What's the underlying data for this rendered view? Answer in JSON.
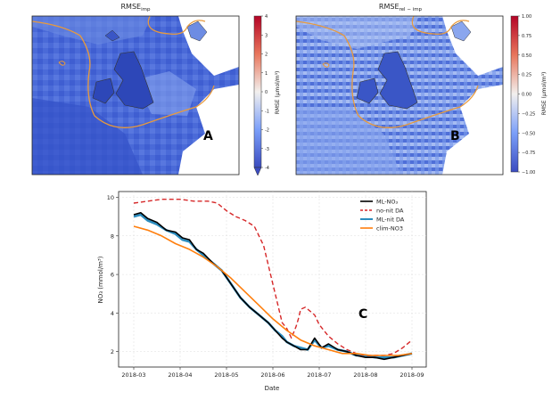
{
  "panels": {
    "map_a": {
      "title_base": "RMSE",
      "title_sub": "imp",
      "colorbar_label": "RMSE (μmol/m³)",
      "colorbar_ticks": [
        "4",
        "3",
        "2",
        "1",
        "0",
        "-1",
        "-2",
        "-3",
        "-4"
      ],
      "panel_label": "A",
      "colors": {
        "low": "#3b4cc0",
        "mid": "#f0f0f0",
        "high": "#b40426"
      }
    },
    "map_b": {
      "title_base": "RMSE",
      "title_sub": "rel − imp",
      "colorbar_label": "RMSE (μmol/m³)",
      "colorbar_ticks": [
        "1.00",
        "0.75",
        "0.50",
        "0.25",
        "0.00",
        "−0.25",
        "−0.50",
        "−0.75",
        "−1.00"
      ],
      "panel_label": "B"
    }
  },
  "chart_data": {
    "type": "line",
    "panel_label": "C",
    "xlabel": "Date",
    "ylabel": "NO₃ (mmol/m³)",
    "xlim": [
      0,
      6.2
    ],
    "ylim": [
      1.2,
      10.3
    ],
    "x_ticks": [
      "2018-03",
      "2018-04",
      "2018-05",
      "2018-06",
      "2018-07",
      "2018-08",
      "2018-09"
    ],
    "y_ticks": [
      2,
      4,
      6,
      8,
      10
    ],
    "grid": true,
    "legend_position": "top-right",
    "series": [
      {
        "name": "ML-NO₃",
        "color": "#000000",
        "dash": "",
        "width": 1.6,
        "x": [
          0.0,
          0.15,
          0.3,
          0.5,
          0.7,
          0.9,
          1.05,
          1.2,
          1.35,
          1.5,
          1.7,
          1.9,
          2.1,
          2.3,
          2.5,
          2.7,
          2.9,
          3.05,
          3.2,
          3.3,
          3.45,
          3.6,
          3.75,
          3.9,
          4.05,
          4.2,
          4.4,
          4.6,
          4.8,
          5.0,
          5.2,
          5.4,
          5.6,
          5.8,
          6.0
        ],
        "y": [
          9.1,
          9.2,
          8.9,
          8.7,
          8.3,
          8.2,
          7.9,
          7.8,
          7.3,
          7.1,
          6.6,
          6.2,
          5.5,
          4.8,
          4.3,
          3.9,
          3.5,
          3.1,
          2.7,
          2.5,
          2.3,
          2.1,
          2.1,
          2.7,
          2.2,
          2.4,
          2.1,
          2.0,
          1.8,
          1.7,
          1.7,
          1.6,
          1.7,
          1.8,
          1.9
        ]
      },
      {
        "name": "no-nit DA",
        "color": "#d62728",
        "dash": "5,3",
        "width": 1.4,
        "x": [
          0.0,
          0.3,
          0.6,
          1.0,
          1.3,
          1.6,
          1.8,
          2.0,
          2.2,
          2.4,
          2.6,
          2.8,
          2.95,
          3.1,
          3.2,
          3.3,
          3.4,
          3.5,
          3.55,
          3.6,
          3.7,
          3.8,
          3.9,
          4.0,
          4.2,
          4.4,
          4.6,
          4.8,
          5.0,
          5.2,
          5.4,
          5.6,
          5.8,
          6.0
        ],
        "y": [
          9.7,
          9.8,
          9.9,
          9.9,
          9.8,
          9.8,
          9.7,
          9.3,
          9.0,
          8.8,
          8.5,
          7.5,
          6.0,
          4.5,
          3.5,
          3.2,
          2.7,
          3.3,
          3.7,
          4.2,
          4.3,
          4.1,
          3.9,
          3.4,
          2.8,
          2.4,
          2.1,
          1.9,
          1.8,
          1.8,
          1.8,
          1.9,
          2.2,
          2.6
        ]
      },
      {
        "name": "ML-nit DA",
        "color": "#2b8cbe",
        "dash": "",
        "width": 2.6,
        "x": [
          0.0,
          0.15,
          0.3,
          0.5,
          0.7,
          0.9,
          1.05,
          1.2,
          1.35,
          1.5,
          1.7,
          1.9,
          2.1,
          2.3,
          2.5,
          2.7,
          2.9,
          3.05,
          3.2,
          3.3,
          3.45,
          3.6,
          3.75,
          3.9,
          4.05,
          4.2,
          4.4,
          4.6,
          4.8,
          5.0,
          5.2,
          5.4,
          5.6,
          5.8,
          6.0
        ],
        "y": [
          9.0,
          9.1,
          8.8,
          8.6,
          8.3,
          8.1,
          7.8,
          7.7,
          7.3,
          7.0,
          6.6,
          6.2,
          5.5,
          4.8,
          4.3,
          3.9,
          3.5,
          3.1,
          2.8,
          2.5,
          2.3,
          2.2,
          2.1,
          2.6,
          2.2,
          2.3,
          2.1,
          2.0,
          1.8,
          1.8,
          1.7,
          1.7,
          1.7,
          1.8,
          1.9
        ]
      },
      {
        "name": "clim-NO3",
        "color": "#ff7f0e",
        "dash": "",
        "width": 1.6,
        "x": [
          0.0,
          0.3,
          0.6,
          0.9,
          1.2,
          1.5,
          1.8,
          2.1,
          2.4,
          2.7,
          3.0,
          3.3,
          3.6,
          3.9,
          4.2,
          4.5,
          4.8,
          5.1,
          5.4,
          5.7,
          6.0
        ],
        "y": [
          8.5,
          8.3,
          8.0,
          7.6,
          7.3,
          6.9,
          6.4,
          5.8,
          5.1,
          4.4,
          3.7,
          3.1,
          2.6,
          2.3,
          2.1,
          1.9,
          1.9,
          1.8,
          1.8,
          1.8,
          1.9
        ]
      }
    ]
  }
}
